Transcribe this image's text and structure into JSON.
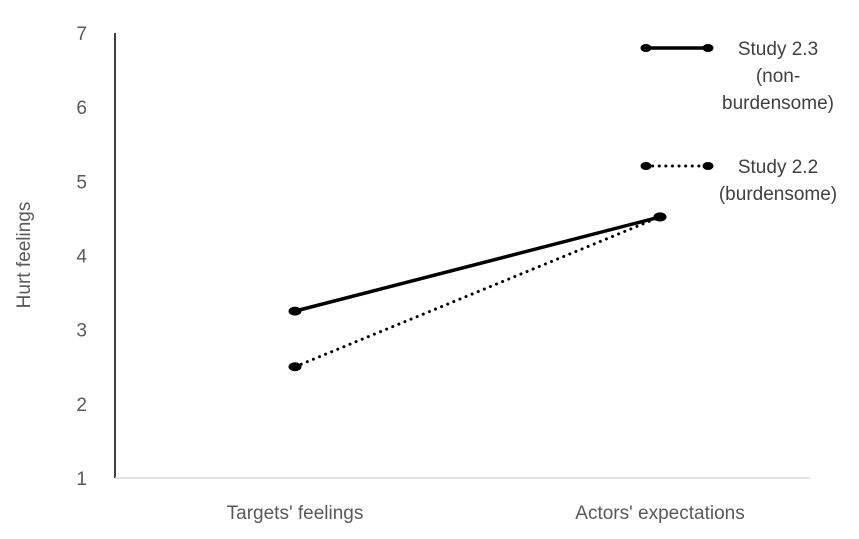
{
  "chart_data": {
    "type": "line",
    "title": "",
    "xlabel": "",
    "ylabel": "Hurt feelings",
    "ylim": [
      1,
      7
    ],
    "yticks": [
      1,
      2,
      3,
      4,
      5,
      6,
      7
    ],
    "grid": false,
    "legend_position": "top-right",
    "categories": [
      "Targets' feelings",
      "Actors' expectations"
    ],
    "series": [
      {
        "name": "Study 2.3 (non-burdensome)",
        "legend_lines": [
          "Study 2.3",
          "(non-",
          "burdensome)"
        ],
        "values": [
          3.25,
          4.52
        ],
        "line_style": "solid",
        "color": "#000000"
      },
      {
        "name": "Study 2.2 (burdensome)",
        "legend_lines": [
          "Study 2.2",
          "(burdensome)"
        ],
        "values": [
          2.5,
          4.52
        ],
        "line_style": "dotted",
        "color": "#000000"
      }
    ]
  }
}
